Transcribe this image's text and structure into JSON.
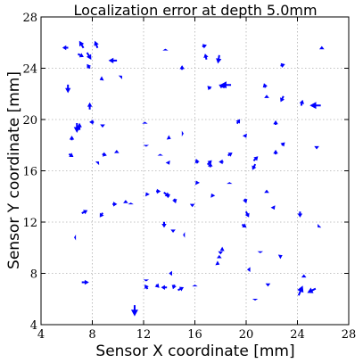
{
  "chart_data": {
    "type": "quiver",
    "title": "Localization error at depth 5.0mm",
    "xlabel": "Sensor X coordinate [mm]",
    "ylabel": "Sensor Y coordinate [mm]",
    "xlim": [
      4,
      28
    ],
    "ylim": [
      4,
      28
    ],
    "xticks": [
      4,
      8,
      12,
      16,
      20,
      24,
      28
    ],
    "yticks": [
      4,
      8,
      12,
      16,
      20,
      24,
      28
    ],
    "xtick_labels": [
      "4",
      "8",
      "12",
      "16",
      "20",
      "24",
      "28"
    ],
    "ytick_labels": [
      "4",
      "8",
      "12",
      "16",
      "20",
      "24",
      "28"
    ],
    "grid": true,
    "color": "#0000ff",
    "arrows": [
      {
        "x": 6.1,
        "y": 25.6,
        "dx": -0.4,
        "dy": 0.0
      },
      {
        "x": 6.9,
        "y": 25.1,
        "dx": 0.4,
        "dy": -0.2
      },
      {
        "x": 7.3,
        "y": 25.6,
        "dx": -0.3,
        "dy": 0.5
      },
      {
        "x": 7.6,
        "y": 25.2,
        "dx": 0.3,
        "dy": -0.5
      },
      {
        "x": 8.4,
        "y": 25.6,
        "dx": -0.2,
        "dy": 0.5
      },
      {
        "x": 9.9,
        "y": 24.6,
        "dx": -0.6,
        "dy": 0.0
      },
      {
        "x": 7.8,
        "y": 24.0,
        "dx": -0.2,
        "dy": 0.3
      },
      {
        "x": 6.1,
        "y": 22.7,
        "dx": 0.0,
        "dy": -0.6
      },
      {
        "x": 8.8,
        "y": 23.2,
        "dx": -0.2,
        "dy": -0.1
      },
      {
        "x": 10.2,
        "y": 23.3,
        "dx": 0.1,
        "dy": 0.1
      },
      {
        "x": 7.8,
        "y": 20.8,
        "dx": 0.0,
        "dy": 0.5
      },
      {
        "x": 6.8,
        "y": 19.7,
        "dx": 0.0,
        "dy": -0.7
      },
      {
        "x": 7.0,
        "y": 19.2,
        "dx": 0.0,
        "dy": 0.5
      },
      {
        "x": 8.1,
        "y": 19.8,
        "dx": -0.3,
        "dy": 0.0
      },
      {
        "x": 8.8,
        "y": 19.6,
        "dx": 0.0,
        "dy": -0.2
      },
      {
        "x": 6.2,
        "y": 17.3,
        "dx": 0.3,
        "dy": -0.2
      },
      {
        "x": 6.4,
        "y": 18.4,
        "dx": 0.0,
        "dy": 0.3
      },
      {
        "x": 8.4,
        "y": 16.6,
        "dx": 0.1,
        "dy": 0.1
      },
      {
        "x": 8.8,
        "y": 17.3,
        "dx": 0.3,
        "dy": -0.1
      },
      {
        "x": 9.9,
        "y": 17.4,
        "dx": 0.0,
        "dy": 0.2
      },
      {
        "x": 12.1,
        "y": 19.7,
        "dx": 0.0,
        "dy": 0.1
      },
      {
        "x": 13.9,
        "y": 18.6,
        "dx": 0.2,
        "dy": -0.1
      },
      {
        "x": 12.2,
        "y": 18.0,
        "dx": 0.0,
        "dy": -0.1
      },
      {
        "x": 13.3,
        "y": 17.2,
        "dx": 0.0,
        "dy": 0.1
      },
      {
        "x": 13.9,
        "y": 16.7,
        "dx": 0.1,
        "dy": -0.2
      },
      {
        "x": 15.0,
        "y": 18.9,
        "dx": 0.1,
        "dy": 0.0
      },
      {
        "x": 16.2,
        "y": 16.6,
        "dx": -0.1,
        "dy": 0.3
      },
      {
        "x": 17.0,
        "y": 16.5,
        "dx": 0.3,
        "dy": 0.3
      },
      {
        "x": 17.2,
        "y": 16.3,
        "dx": 0.0,
        "dy": 0.3
      },
      {
        "x": 18.2,
        "y": 16.7,
        "dx": -0.3,
        "dy": 0.0
      },
      {
        "x": 18.6,
        "y": 17.2,
        "dx": 0.3,
        "dy": 0.2
      },
      {
        "x": 19.3,
        "y": 19.7,
        "dx": 0.2,
        "dy": 0.3
      },
      {
        "x": 19.9,
        "y": 18.8,
        "dx": 0.1,
        "dy": -0.2
      },
      {
        "x": 20.7,
        "y": 16.5,
        "dx": -0.2,
        "dy": -0.4
      },
      {
        "x": 20.6,
        "y": 16.8,
        "dx": 0.3,
        "dy": 0.3
      },
      {
        "x": 22.3,
        "y": 17.3,
        "dx": 0.0,
        "dy": 0.3
      },
      {
        "x": 22.3,
        "y": 19.6,
        "dx": 0.0,
        "dy": 0.3
      },
      {
        "x": 22.8,
        "y": 18.0,
        "dx": 0.2,
        "dy": 0.2
      },
      {
        "x": 21.5,
        "y": 22.5,
        "dx": -0.1,
        "dy": 0.3
      },
      {
        "x": 21.6,
        "y": 21.7,
        "dx": 0.0,
        "dy": 0.2
      },
      {
        "x": 22.9,
        "y": 21.8,
        "dx": -0.2,
        "dy": -0.4
      },
      {
        "x": 24.3,
        "y": 21.1,
        "dx": 0.1,
        "dy": 0.4
      },
      {
        "x": 25.8,
        "y": 21.1,
        "dx": -0.8,
        "dy": 0.0
      },
      {
        "x": 22.7,
        "y": 24.2,
        "dx": 0.3,
        "dy": 0.1
      },
      {
        "x": 25.9,
        "y": 25.5,
        "dx": 0.0,
        "dy": 0.2
      },
      {
        "x": 25.5,
        "y": 17.9,
        "dx": 0.0,
        "dy": -0.2
      },
      {
        "x": 16.9,
        "y": 24.7,
        "dx": -0.1,
        "dy": 0.4
      },
      {
        "x": 17.9,
        "y": 25.0,
        "dx": -0.1,
        "dy": -0.6
      },
      {
        "x": 16.6,
        "y": 25.7,
        "dx": 0.3,
        "dy": 0.1
      },
      {
        "x": 15.0,
        "y": 23.9,
        "dx": 0.0,
        "dy": 0.3
      },
      {
        "x": 13.7,
        "y": 25.4,
        "dx": 0.0,
        "dy": 0.1
      },
      {
        "x": 17.2,
        "y": 22.4,
        "dx": -0.2,
        "dy": 0.2
      },
      {
        "x": 18.8,
        "y": 22.7,
        "dx": -0.8,
        "dy": 0.0
      },
      {
        "x": 18.3,
        "y": 22.5,
        "dx": -0.4,
        "dy": 0.2
      },
      {
        "x": 7.2,
        "y": 12.7,
        "dx": 0.4,
        "dy": 0.2
      },
      {
        "x": 8.8,
        "y": 12.7,
        "dx": -0.2,
        "dy": -0.3
      },
      {
        "x": 9.6,
        "y": 13.4,
        "dx": 0.3,
        "dy": 0.0
      },
      {
        "x": 10.6,
        "y": 13.5,
        "dx": 0.0,
        "dy": 0.2
      },
      {
        "x": 11.0,
        "y": 13.4,
        "dx": 0.0,
        "dy": 0.1
      },
      {
        "x": 12.3,
        "y": 14.1,
        "dx": -0.1,
        "dy": 0.2
      },
      {
        "x": 13.0,
        "y": 14.4,
        "dx": 0.3,
        "dy": 0.0
      },
      {
        "x": 13.6,
        "y": 14.3,
        "dx": 0.4,
        "dy": -0.3
      },
      {
        "x": 13.9,
        "y": 14.2,
        "dx": 0.0,
        "dy": -0.3
      },
      {
        "x": 14.4,
        "y": 13.8,
        "dx": 0.1,
        "dy": -0.3
      },
      {
        "x": 13.6,
        "y": 12.0,
        "dx": 0.0,
        "dy": -0.4
      },
      {
        "x": 15.8,
        "y": 13.4,
        "dx": 0.0,
        "dy": -0.2
      },
      {
        "x": 16.2,
        "y": 15.0,
        "dx": -0.1,
        "dy": 0.2
      },
      {
        "x": 17.4,
        "y": 14.0,
        "dx": -0.1,
        "dy": 0.2
      },
      {
        "x": 18.7,
        "y": 15.0,
        "dx": 0.0,
        "dy": 0.1
      },
      {
        "x": 19.9,
        "y": 13.8,
        "dx": 0.1,
        "dy": -0.3
      },
      {
        "x": 19.7,
        "y": 11.8,
        "dx": 0.3,
        "dy": -0.2
      },
      {
        "x": 20.0,
        "y": 12.8,
        "dx": 0.2,
        "dy": -0.4
      },
      {
        "x": 21.6,
        "y": 14.3,
        "dx": 0.0,
        "dy": 0.2
      },
      {
        "x": 22.1,
        "y": 13.2,
        "dx": 0.1,
        "dy": -0.2
      },
      {
        "x": 24.2,
        "y": 12.8,
        "dx": 0.0,
        "dy": -0.4
      },
      {
        "x": 25.7,
        "y": 11.7,
        "dx": -0.1,
        "dy": -0.1
      },
      {
        "x": 14.3,
        "y": 11.4,
        "dx": 0.0,
        "dy": -0.2
      },
      {
        "x": 15.2,
        "y": 11.0,
        "dx": -0.1,
        "dy": 0.0
      },
      {
        "x": 6.7,
        "y": 10.8,
        "dx": -0.1,
        "dy": 0.0
      },
      {
        "x": 18.0,
        "y": 9.7,
        "dx": 0.0,
        "dy": -0.2
      },
      {
        "x": 18.2,
        "y": 9.9,
        "dx": -0.2,
        "dy": -0.1
      },
      {
        "x": 17.9,
        "y": 9.2,
        "dx": 0.0,
        "dy": 0.2
      },
      {
        "x": 17.7,
        "y": 8.8,
        "dx": 0.2,
        "dy": -0.1
      },
      {
        "x": 20.3,
        "y": 8.3,
        "dx": -0.2,
        "dy": 0.0
      },
      {
        "x": 21.1,
        "y": 9.7,
        "dx": 0.0,
        "dy": -0.1
      },
      {
        "x": 22.6,
        "y": 9.3,
        "dx": 0.2,
        "dy": 0.1
      },
      {
        "x": 21.7,
        "y": 7.2,
        "dx": 0.0,
        "dy": -0.2
      },
      {
        "x": 7.2,
        "y": 7.3,
        "dx": 0.5,
        "dy": 0.0
      },
      {
        "x": 11.3,
        "y": 5.5,
        "dx": 0.0,
        "dy": -0.8
      },
      {
        "x": 12.3,
        "y": 6.8,
        "dx": -0.2,
        "dy": 0.3
      },
      {
        "x": 12.2,
        "y": 7.5,
        "dx": 0.0,
        "dy": -0.1
      },
      {
        "x": 13.0,
        "y": 7.1,
        "dx": 0.2,
        "dy": -0.2
      },
      {
        "x": 13.8,
        "y": 6.9,
        "dx": -0.4,
        "dy": 0.0
      },
      {
        "x": 14.4,
        "y": 7.1,
        "dx": -0.1,
        "dy": -0.3
      },
      {
        "x": 14.7,
        "y": 6.7,
        "dx": 0.4,
        "dy": 0.2
      },
      {
        "x": 14.2,
        "y": 8.0,
        "dx": -0.2,
        "dy": 0.0
      },
      {
        "x": 16.0,
        "y": 7.0,
        "dx": 0.0,
        "dy": 0.1
      },
      {
        "x": 24.1,
        "y": 6.3,
        "dx": 0.3,
        "dy": 0.7
      },
      {
        "x": 24.5,
        "y": 7.7,
        "dx": 0.0,
        "dy": 0.2
      },
      {
        "x": 25.4,
        "y": 6.8,
        "dx": -0.6,
        "dy": -0.3
      },
      {
        "x": 20.7,
        "y": 6.0,
        "dx": 0.0,
        "dy": -0.1
      }
    ]
  }
}
